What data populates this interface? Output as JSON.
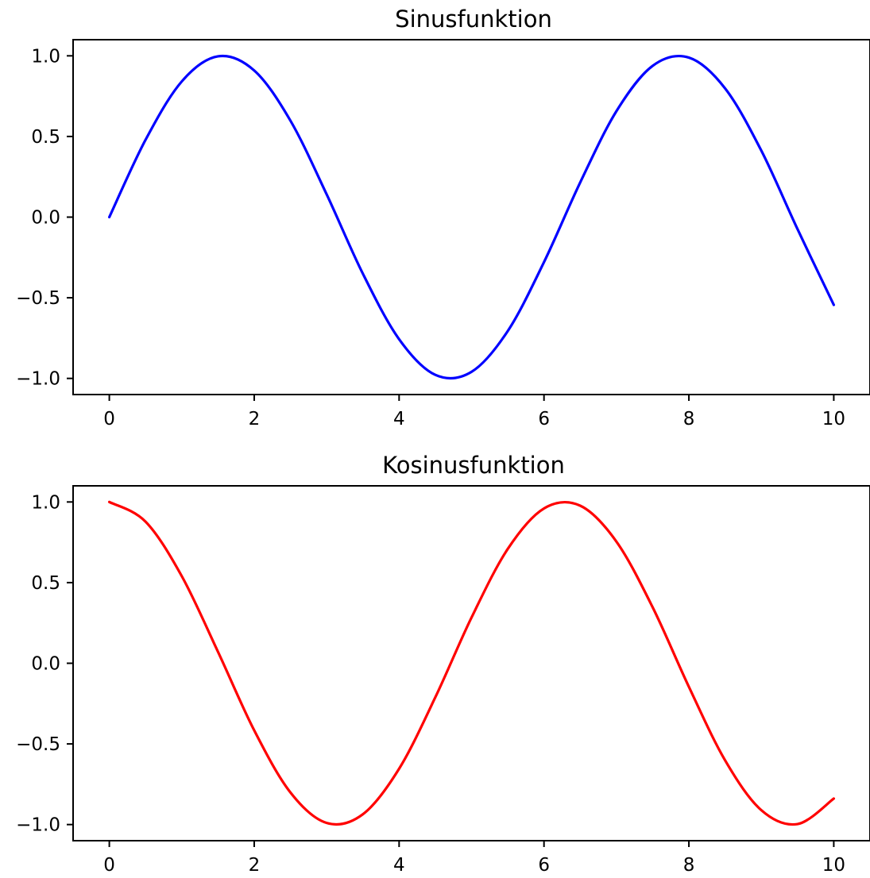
{
  "chart_data": [
    {
      "type": "line",
      "title": "Sinusfunktion",
      "xlabel": "",
      "ylabel": "",
      "xlim": [
        -0.5,
        10.5
      ],
      "ylim": [
        -1.1,
        1.1
      ],
      "xticks": [
        0,
        2,
        4,
        6,
        8,
        10
      ],
      "xtick_labels": [
        "0",
        "2",
        "4",
        "6",
        "8",
        "10"
      ],
      "yticks": [
        1.0,
        0.5,
        0.0,
        -0.5,
        -1.0
      ],
      "ytick_labels": [
        "1.0",
        "0.5",
        "0.0",
        "−0.5",
        "−1.0"
      ],
      "grid": false,
      "series": [
        {
          "color": "#0000ff",
          "x": [
            0,
            0.5,
            1,
            1.5,
            2,
            2.5,
            3,
            3.5,
            4,
            4.5,
            5,
            5.5,
            6,
            6.5,
            7,
            7.5,
            8,
            8.5,
            9,
            9.5,
            10
          ],
          "y": [
            0.0,
            0.479,
            0.841,
            0.997,
            0.909,
            0.598,
            0.141,
            -0.351,
            -0.757,
            -0.978,
            -0.959,
            -0.706,
            -0.279,
            0.215,
            0.657,
            0.938,
            0.989,
            0.798,
            0.412,
            -0.075,
            -0.544
          ]
        }
      ]
    },
    {
      "type": "line",
      "title": "Kosinusfunktion",
      "xlabel": "",
      "ylabel": "",
      "xlim": [
        -0.5,
        10.5
      ],
      "ylim": [
        -1.1,
        1.1
      ],
      "xticks": [
        0,
        2,
        4,
        6,
        8,
        10
      ],
      "xtick_labels": [
        "0",
        "2",
        "4",
        "6",
        "8",
        "10"
      ],
      "yticks": [
        1.0,
        0.5,
        0.0,
        -0.5,
        -1.0
      ],
      "ytick_labels": [
        "1.0",
        "0.5",
        "0.0",
        "−0.5",
        "−1.0"
      ],
      "grid": false,
      "series": [
        {
          "color": "#ff0000",
          "x": [
            0,
            0.5,
            1,
            1.5,
            2,
            2.5,
            3,
            3.5,
            4,
            4.5,
            5,
            5.5,
            6,
            6.5,
            7,
            7.5,
            8,
            8.5,
            9,
            9.5,
            10
          ],
          "y": [
            1.0,
            0.878,
            0.54,
            0.071,
            -0.416,
            -0.801,
            -0.99,
            -0.936,
            -0.654,
            -0.211,
            0.284,
            0.709,
            0.96,
            0.977,
            0.754,
            0.347,
            -0.146,
            -0.602,
            -0.911,
            -0.997,
            -0.839
          ]
        }
      ]
    }
  ]
}
